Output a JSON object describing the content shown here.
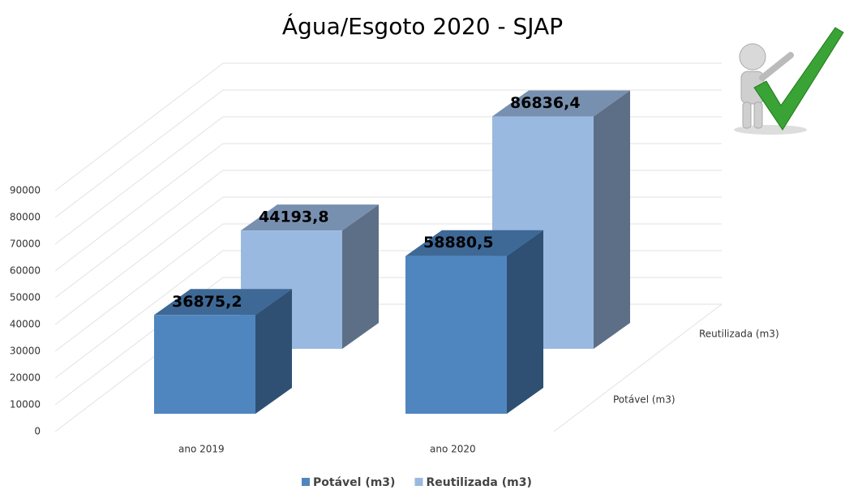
{
  "chart_data": {
    "type": "bar3d",
    "title": "Água/Esgoto 2020 - SJAP",
    "categories": [
      "ano 2019",
      "ano 2020"
    ],
    "series": [
      {
        "name": "Potável (m3)",
        "color": "#4f86c0",
        "values": [
          36875.2,
          58880.5
        ],
        "value_labels": [
          "36875,2",
          "58880,5"
        ]
      },
      {
        "name": "Reutilizada (m3)",
        "color": "#9ab9e0",
        "values": [
          44193.8,
          86836.4
        ],
        "value_labels": [
          "44193,8",
          "86836,4"
        ]
      }
    ],
    "ylim": [
      0,
      90000
    ],
    "yticks": [
      0,
      10000,
      20000,
      30000,
      40000,
      50000,
      60000,
      70000,
      80000,
      90000
    ],
    "grid": true,
    "legend": "bottom"
  }
}
